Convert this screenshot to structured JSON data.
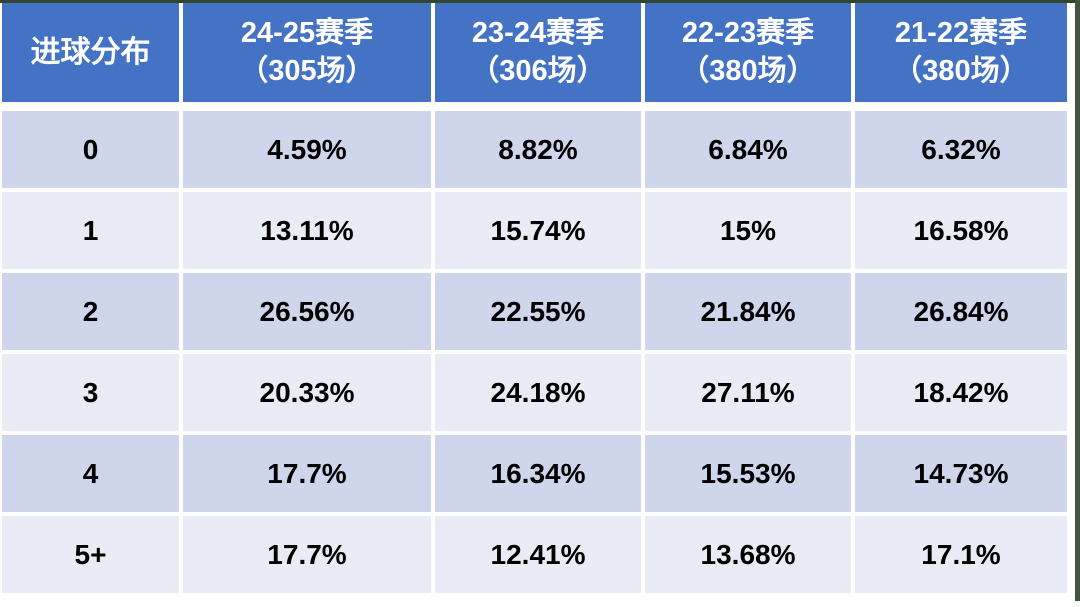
{
  "colors": {
    "header_bg": "#4472c4",
    "header_text": "#ffffff",
    "band_dark": "#cfd5ea",
    "band_light": "#e9ebf5",
    "frame_top": "#32452f",
    "frame_right": "#40543e",
    "cell_text": "#000000",
    "gap": "#ffffff"
  },
  "table": {
    "header": {
      "corner": "进球分布",
      "columns": [
        {
          "line1": "24-25赛季",
          "line2": "（305场）"
        },
        {
          "line1": "23-24赛季",
          "line2": "（306场）"
        },
        {
          "line1": "22-23赛季",
          "line2": "（380场）"
        },
        {
          "line1": "21-22赛季",
          "line2": "（380场）"
        }
      ]
    },
    "rows": [
      {
        "label": "0",
        "values": [
          "4.59%",
          "8.82%",
          "6.84%",
          "6.32%"
        ]
      },
      {
        "label": "1",
        "values": [
          "13.11%",
          "15.74%",
          "15%",
          "16.58%"
        ]
      },
      {
        "label": "2",
        "values": [
          "26.56%",
          "22.55%",
          "21.84%",
          "26.84%"
        ]
      },
      {
        "label": "3",
        "values": [
          "20.33%",
          "24.18%",
          "27.11%",
          "18.42%"
        ]
      },
      {
        "label": "4",
        "values": [
          "17.7%",
          "16.34%",
          "15.53%",
          "14.73%"
        ]
      },
      {
        "label": "5+",
        "values": [
          "17.7%",
          "12.41%",
          "13.68%",
          "17.1%"
        ]
      }
    ]
  },
  "chart_data": {
    "type": "table",
    "title": "进球分布",
    "row_labels": [
      "0",
      "1",
      "2",
      "3",
      "4",
      "5+"
    ],
    "columns": [
      "24-25赛季（305场）",
      "23-24赛季（306场）",
      "22-23赛季（380场）",
      "21-22赛季（380场）"
    ],
    "matches_per_column": [
      305,
      306,
      380,
      380
    ],
    "values_percent": [
      [
        4.59,
        8.82,
        6.84,
        6.32
      ],
      [
        13.11,
        15.74,
        15,
        16.58
      ],
      [
        26.56,
        22.55,
        21.84,
        26.84
      ],
      [
        20.33,
        24.18,
        27.11,
        18.42
      ],
      [
        17.7,
        16.34,
        15.53,
        14.73
      ],
      [
        17.7,
        12.41,
        13.68,
        17.1
      ]
    ]
  }
}
